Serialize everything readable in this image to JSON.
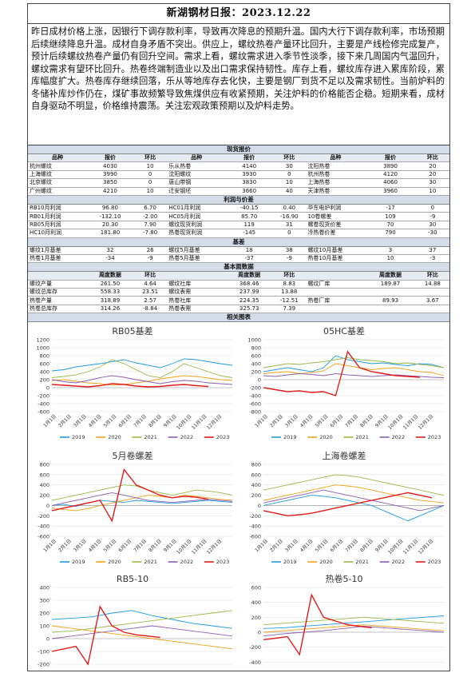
{
  "header": {
    "title": "新湖钢材日报：2023.12.22"
  },
  "summary": "昨日成材价格上涨，因银行下调存款利率，导致再次降息的预期升温。国内大行下调存款利率，市场预期后续继续降息升温。成材自身矛盾不突出。供应上，螺纹热卷产量环比回升，主要是产线检修完成复产，预计后续螺纹热卷产量仍有回升空间。需求上看，螺纹需求进入季节性淡季，接下来几周国内气温回升，螺纹需求有望环比回升。热卷终端制造业以及出口需求保持韧性。库存上看，螺纹库存进入累库阶段，累库幅度扩大。热卷库存继续回落，乐从等地库存去化快，主要是钢厂到货不足以及需求韧性。当前炉料的冬储补库炒作仍在，煤矿事故频繁导致焦煤供应有收紧预期，关注炉料的价格能否企稳。短期来看，成材自身驱动不明显，价格维持震荡。关注宏观政策预期以及炉料走势。",
  "sections": {
    "spot": "现货报价",
    "profit": "利润与价差",
    "basis": "基差",
    "fundamentals": "基本面数据",
    "charts": "相关图表"
  },
  "spot": {
    "headers": [
      "品种",
      "报价",
      "环比",
      "品种",
      "报价",
      "环比",
      "品种",
      "报价",
      "环比"
    ],
    "rows": [
      [
        "杭州螺纹",
        "4030",
        "10",
        "乐从热卷",
        "4140",
        "30",
        "沈阳热卷",
        "3890",
        "20"
      ],
      [
        "上海螺纹",
        "3990",
        "0",
        "沈阳螺纹",
        "3930",
        "0",
        "杭州热卷",
        "4120",
        "20"
      ],
      [
        "北京螺纹",
        "3850",
        "0",
        "唐山带钢",
        "3830",
        "10",
        "上海热卷",
        "4060",
        "30"
      ],
      [
        "广州螺纹",
        "4210",
        "10",
        "迁安钢坯",
        "3660",
        "40",
        "天津热卷",
        "3960",
        "10"
      ]
    ]
  },
  "profit": {
    "rows": [
      [
        "RB10月利润",
        "96.80",
        "6.70",
        "HC01月利润",
        "-40.15",
        "0.40",
        "华东电炉利润",
        "-17",
        "0"
      ],
      [
        "RB01月利润",
        "-132.10",
        "-2.00",
        "HC05月利润",
        "85.70",
        "-16.90",
        "10卷螺差",
        "109",
        "-9"
      ],
      [
        "RB05月利润",
        "20.30",
        "7.90",
        "螺纹现货利润",
        "119",
        "31",
        "螺卷现货价差",
        "70",
        "30"
      ],
      [
        "HC10月利润",
        "181.80",
        "-7.80",
        "热卷现货利润",
        "-145",
        "0",
        "冷热卷价差",
        "790",
        "-30"
      ]
    ]
  },
  "basis": {
    "rows": [
      [
        "螺纹1月基差",
        "32",
        "26",
        "螺纹5月基差",
        "18",
        "38",
        "螺纹10月基差",
        "3",
        "37"
      ],
      [
        "热卷1月基差",
        "-34",
        "-9",
        "热卷5月基差",
        "-37",
        "-9",
        "热卷10月基差",
        "10",
        "-3"
      ]
    ]
  },
  "fundamentals": {
    "headers": [
      "",
      "周度数据",
      "环比",
      "",
      "周度数据",
      "环比",
      "",
      "周度数据",
      "环比"
    ],
    "rows": [
      [
        "螺纹产量",
        "261.50",
        "4.64",
        "螺纹社库",
        "368.46",
        "8.83",
        "螺纹厂库",
        "189.87",
        "14.88"
      ],
      [
        "螺纹总库存",
        "558.33",
        "23.51",
        "螺纹表需",
        "237.99",
        "13.88",
        "",
        "",
        ""
      ],
      [
        "热卷产量",
        "318.89",
        "2.57",
        "热卷社库",
        "224.35",
        "-12.51",
        "热卷厂库",
        "89.93",
        "3.67"
      ],
      [
        "热卷总库存",
        "314.26",
        "-8.84",
        "热卷表需",
        "325.73",
        "7.39",
        "",
        "",
        ""
      ]
    ]
  },
  "colors": {
    "y2019": "#1f9be0",
    "y2020": "#f0a21c",
    "y2021": "#9bb84a",
    "y2022": "#8a5fb0",
    "y2023": "#e31b1b"
  },
  "chart_data": [
    {
      "type": "line",
      "title": "RB05基差",
      "y_ticks": [
        "1200",
        "1000",
        "800",
        "600",
        "400",
        "200",
        "0",
        "-200",
        "-400",
        "-600"
      ],
      "ylim": [
        -600,
        1200
      ],
      "x_ticks": [
        "1月1日",
        "2月1日",
        "3月1日",
        "4月1日",
        "5月1日",
        "6月1日",
        "7月1日",
        "8月1日",
        "9月1日",
        "10月1日",
        "11月1日",
        "12月1日"
      ],
      "series": [
        {
          "name": "2019",
          "values": [
            420,
            450,
            520,
            560,
            600,
            650,
            700,
            620,
            560,
            500,
            600,
            720,
            700,
            650,
            600,
            560
          ]
        },
        {
          "name": "2020",
          "values": [
            180,
            200,
            160,
            120,
            100,
            60,
            80,
            120,
            160,
            220,
            260,
            300,
            280,
            240,
            200,
            180
          ]
        },
        {
          "name": "2021",
          "values": [
            250,
            280,
            320,
            400,
            520,
            700,
            600,
            450,
            300,
            250,
            400,
            600,
            500,
            400,
            300,
            250
          ]
        },
        {
          "name": "2022",
          "values": [
            200,
            150,
            120,
            180,
            250,
            300,
            260,
            200,
            150,
            100,
            150,
            180,
            160,
            120,
            100,
            80
          ]
        },
        {
          "name": "2023",
          "values": [
            80,
            60,
            40,
            20,
            50,
            100,
            80,
            40,
            20,
            30,
            60,
            80,
            50,
            30
          ]
        }
      ],
      "legend": [
        "2019",
        "2020",
        "2021",
        "2022",
        "2023"
      ]
    },
    {
      "type": "line",
      "title": "05HC基差",
      "y_ticks": [
        "1000",
        "800",
        "600",
        "400",
        "200",
        "0",
        "-200",
        "-400",
        "-600",
        "-800"
      ],
      "ylim": [
        -800,
        1000
      ],
      "x_ticks": [
        "1月1日",
        "2月1日",
        "3月1日",
        "4月1日",
        "5月1日",
        "6月1日",
        "7月1日",
        "8月1日",
        "9月1日",
        "10月1日",
        "11月1日",
        "12月1日"
      ],
      "series": [
        {
          "name": "2019",
          "values": [
            200,
            250,
            300,
            250,
            200,
            300,
            600,
            500,
            450,
            400,
            420,
            380,
            350,
            400,
            380,
            300
          ]
        },
        {
          "name": "2020",
          "values": [
            150,
            180,
            200,
            150,
            180,
            220,
            400,
            350,
            300,
            250,
            280,
            300,
            250,
            200,
            180,
            100
          ]
        },
        {
          "name": "2021",
          "values": [
            300,
            350,
            400,
            380,
            420,
            450,
            500,
            550,
            500,
            480,
            450,
            400,
            420,
            380,
            350,
            300
          ]
        },
        {
          "name": "2022",
          "values": [
            100,
            80,
            120,
            150,
            130,
            100,
            150,
            120,
            100,
            80,
            100,
            120,
            100,
            80,
            60,
            50
          ]
        },
        {
          "name": "2023",
          "values": [
            -200,
            -250,
            -300,
            -280,
            -320,
            -300,
            -400,
            700,
            300,
            200,
            150,
            100,
            80,
            60
          ]
        }
      ],
      "legend": [
        "2019",
        "2020",
        "2021",
        "2022",
        "2023"
      ]
    },
    {
      "type": "line",
      "title": "5月卷螺差",
      "y_ticks": [
        "800",
        "600",
        "400",
        "200",
        "0",
        "-200",
        "-400",
        "-600"
      ],
      "ylim": [
        -600,
        800
      ],
      "x_ticks": [
        "1月1日",
        "2月1日",
        "3月1日",
        "4月1日",
        "5月1日",
        "6月1日",
        "7月1日",
        "8月1日",
        "9月1日",
        "10月1日",
        "11月1日",
        "12月1日"
      ],
      "series": [
        {
          "name": "2019",
          "values": [
            0,
            20,
            -20,
            50,
            100,
            80,
            60,
            100,
            80,
            60,
            40,
            60,
            80,
            100,
            80,
            60
          ]
        },
        {
          "name": "2020",
          "values": [
            -50,
            -80,
            -100,
            -60,
            0,
            50,
            100,
            150,
            200,
            180,
            150,
            200,
            180,
            150,
            120,
            100
          ]
        },
        {
          "name": "2021",
          "values": [
            100,
            150,
            200,
            250,
            300,
            350,
            400,
            380,
            300,
            250,
            200,
            250,
            300,
            280,
            250,
            200
          ]
        },
        {
          "name": "2022",
          "values": [
            0,
            50,
            100,
            150,
            200,
            250,
            200,
            150,
            100,
            80,
            60,
            80,
            100,
            120,
            100,
            80
          ]
        },
        {
          "name": "2023",
          "values": [
            -100,
            -50,
            0,
            50,
            100,
            -300,
            700,
            400,
            300,
            200,
            150,
            180,
            160,
            120
          ]
        }
      ],
      "legend": [
        "2019",
        "2020",
        "2021",
        "2022",
        "2023"
      ]
    },
    {
      "type": "line",
      "title": "上海卷螺差",
      "y_ticks": [
        "800",
        "600",
        "400",
        "200",
        "0",
        "-200",
        "-400",
        "-600"
      ],
      "ylim": [
        -600,
        800
      ],
      "x_ticks": [
        "1月1日",
        "2月1日",
        "3月1日",
        "4月1日",
        "5月1日",
        "6月1日",
        "7月1日",
        "8月1日",
        "9月1日",
        "10月1日",
        "11月1日",
        "12月1日"
      ],
      "series": [
        {
          "name": "2019",
          "values": [
            0,
            50,
            100,
            150,
            200,
            180,
            150,
            100,
            50,
            0,
            -100,
            -200,
            -300,
            -200,
            -100,
            0
          ]
        },
        {
          "name": "2020",
          "values": [
            100,
            150,
            200,
            250,
            300,
            350,
            400,
            380,
            350,
            300,
            250,
            200,
            150,
            100,
            80,
            50
          ]
        },
        {
          "name": "2021",
          "values": [
            300,
            350,
            400,
            450,
            500,
            550,
            600,
            580,
            550,
            500,
            450,
            400,
            350,
            300,
            250,
            200
          ]
        },
        {
          "name": "2022",
          "values": [
            50,
            100,
            150,
            200,
            250,
            300,
            250,
            200,
            150,
            100,
            50,
            0,
            -50,
            -100,
            -50,
            0
          ]
        },
        {
          "name": "2023",
          "values": [
            -100,
            -150,
            -200,
            -180,
            -150,
            -100,
            -50,
            0,
            50,
            100,
            150,
            200,
            250,
            200,
            150
          ]
        }
      ],
      "legend": [
        "2019",
        "2020",
        "2021",
        "2022",
        "2023"
      ]
    },
    {
      "type": "line",
      "title": "RB5-10",
      "y_ticks": [
        "400",
        "300",
        "200",
        "100",
        "0",
        "-100",
        "-200",
        "-300"
      ],
      "ylim": [
        -300,
        400
      ],
      "x_ticks": [],
      "series": [
        {
          "name": "2019",
          "values": [
            150,
            160,
            170,
            200,
            220,
            180,
            150,
            120,
            100,
            80
          ]
        },
        {
          "name": "2020",
          "values": [
            100,
            80,
            60,
            40,
            20,
            0,
            -20,
            -40,
            -60,
            -80
          ]
        },
        {
          "name": "2021",
          "values": [
            50,
            60,
            80,
            100,
            120,
            140,
            160,
            180,
            200,
            220
          ]
        },
        {
          "name": "2022",
          "values": [
            0,
            20,
            40,
            60,
            80,
            100,
            80,
            60,
            40,
            20
          ]
        },
        {
          "name": "2023",
          "values": [
            -100,
            -80,
            -60,
            -200,
            250,
            100,
            50,
            30,
            20,
            10
          ]
        }
      ],
      "legend": []
    },
    {
      "type": "line",
      "title": "热卷5-10",
      "y_ticks": [
        "600",
        "400",
        "200",
        "0",
        "-200",
        "-400",
        "-600"
      ],
      "ylim": [
        -600,
        600
      ],
      "x_ticks": [],
      "series": [
        {
          "name": "2019",
          "values": [
            50,
            60,
            80,
            100,
            120,
            140,
            160,
            180,
            200,
            220
          ]
        },
        {
          "name": "2020",
          "values": [
            0,
            20,
            40,
            60,
            80,
            100,
            80,
            60,
            40,
            20
          ]
        },
        {
          "name": "2021",
          "values": [
            100,
            120,
            140,
            160,
            180,
            200,
            180,
            160,
            140,
            120
          ]
        },
        {
          "name": "2022",
          "values": [
            -50,
            -20,
            0,
            20,
            50,
            80,
            60,
            40,
            20,
            0
          ]
        },
        {
          "name": "2023",
          "values": [
            -100,
            -80,
            -60,
            -300,
            500,
            200,
            150,
            100,
            80,
            60
          ]
        }
      ],
      "legend": []
    }
  ]
}
